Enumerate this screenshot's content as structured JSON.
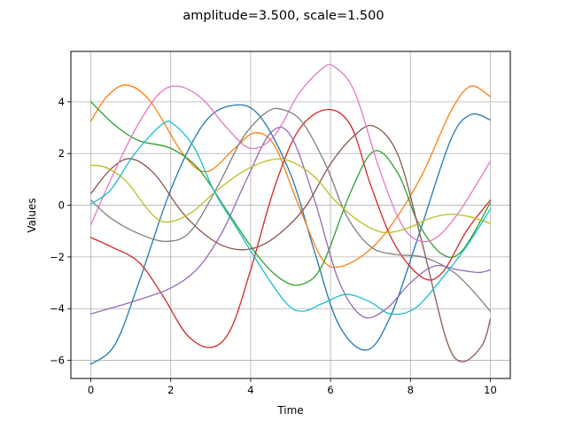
{
  "chart_data": {
    "type": "line",
    "title": "amplitude=3.500, scale=1.500",
    "xlabel": "Time",
    "ylabel": "Values",
    "xlim": [
      -0.5,
      10.5
    ],
    "ylim": [
      -6.7,
      5.95
    ],
    "xticks": [
      0,
      2,
      4,
      6,
      8,
      10
    ],
    "yticks": [
      -6,
      -4,
      -2,
      0,
      2,
      4
    ],
    "xtick_labels": [
      "0",
      "2",
      "4",
      "6",
      "8",
      "10"
    ],
    "ytick_labels": [
      "−6",
      "−4",
      "−2",
      "0",
      "2",
      "4"
    ],
    "grid": true,
    "legend": "none",
    "series": [
      {
        "color": "#1f77b4",
        "x": [
          0,
          0.6,
          1.2,
          2,
          2.8,
          3.5,
          4.2,
          5,
          5.6,
          6.2,
          6.9,
          7.5,
          8.2,
          9,
          9.5,
          10
        ],
        "y": [
          -6.15,
          -5.4,
          -3,
          0.6,
          3.1,
          3.85,
          3.5,
          1.2,
          -1.8,
          -4.6,
          -5.6,
          -4.3,
          -1.2,
          2.5,
          3.5,
          3.3
        ]
      },
      {
        "color": "#ff7f0e",
        "x": [
          0,
          0.4,
          0.9,
          1.5,
          2.3,
          2.9,
          3.6,
          4.1,
          4.6,
          5.2,
          5.8,
          6.3,
          7,
          7.6,
          8.3,
          9,
          9.5,
          10
        ],
        "y": [
          3.25,
          4.2,
          4.65,
          4,
          2,
          1.3,
          2.2,
          2.8,
          2.3,
          0,
          -2.1,
          -2.35,
          -1.7,
          -0.6,
          1.2,
          3.6,
          4.6,
          4.2
        ]
      },
      {
        "color": "#2ca02c",
        "x": [
          0,
          0.6,
          1.2,
          2,
          2.7,
          3.4,
          4.2,
          4.8,
          5.3,
          5.8,
          6.5,
          7.1,
          7.7,
          8.2,
          8.8,
          9.3,
          10
        ],
        "y": [
          4,
          3.1,
          2.5,
          2.2,
          1.4,
          -0.2,
          -2,
          -2.9,
          -3.05,
          -2.3,
          0.5,
          2.1,
          1.2,
          -0.7,
          -1.9,
          -1.75,
          0.1
        ]
      },
      {
        "color": "#d62728",
        "x": [
          0,
          0.5,
          1.2,
          1.8,
          2.4,
          3,
          3.5,
          4,
          4.6,
          5.2,
          5.9,
          6.5,
          7,
          7.6,
          8.3,
          8.8,
          9.4,
          10
        ],
        "y": [
          -1.25,
          -1.6,
          -2.2,
          -3.5,
          -5,
          -5.5,
          -4.8,
          -2.5,
          0.7,
          2.9,
          3.7,
          3.1,
          0.8,
          -1.5,
          -2.8,
          -2.6,
          -1,
          0.2
        ]
      },
      {
        "color": "#9467bd",
        "x": [
          0,
          1,
          2,
          2.7,
          3.3,
          3.9,
          4.5,
          5,
          5.6,
          6.2,
          6.8,
          7.4,
          8,
          8.6,
          9.2,
          9.7,
          10
        ],
        "y": [
          -4.2,
          -3.75,
          -3.2,
          -2.4,
          -1,
          1,
          2.8,
          2.7,
          0.2,
          -2.9,
          -4.3,
          -4,
          -3,
          -2.35,
          -2.5,
          -2.6,
          -2.5
        ]
      },
      {
        "color": "#8c564b",
        "x": [
          0,
          0.5,
          1,
          1.6,
          2.3,
          3,
          3.6,
          4.2,
          4.8,
          5.4,
          6,
          6.6,
          7.1,
          7.7,
          8.3,
          8.9,
          9.3,
          9.8,
          10
        ],
        "y": [
          0.45,
          1.4,
          1.8,
          1.2,
          -0.3,
          -1.3,
          -1.7,
          -1.6,
          -1,
          0,
          1.6,
          2.7,
          3.05,
          1.9,
          -1.5,
          -5.2,
          -6.05,
          -5.4,
          -4.4
        ]
      },
      {
        "color": "#e377c2",
        "x": [
          0,
          0.5,
          1.1,
          1.7,
          2.2,
          2.8,
          3.4,
          4,
          4.6,
          5.2,
          5.8,
          6.1,
          6.6,
          7.2,
          7.7,
          8.1,
          8.6,
          9.2,
          10
        ],
        "y": [
          -0.75,
          1,
          2.9,
          4.3,
          4.6,
          4.1,
          3,
          2.2,
          2.7,
          4.3,
          5.3,
          5.35,
          4.4,
          1.5,
          -0.5,
          -1.3,
          -1.3,
          -0.3,
          1.7
        ]
      },
      {
        "color": "#7f7f7f",
        "x": [
          0,
          0.5,
          1.2,
          1.9,
          2.5,
          3.2,
          3.8,
          4.4,
          4.8,
          5.3,
          5.9,
          6.4,
          7,
          7.6,
          8.3,
          9,
          9.5,
          10
        ],
        "y": [
          0.2,
          -0.5,
          -1.1,
          -1.4,
          -1,
          0.8,
          2.6,
          3.6,
          3.7,
          3.2,
          1.5,
          -0.4,
          -1.6,
          -1.9,
          -2,
          -2.5,
          -3.2,
          -4.1
        ]
      },
      {
        "color": "#bcbd22",
        "x": [
          0,
          0.4,
          0.9,
          1.5,
          1.9,
          2.5,
          3.1,
          3.8,
          4.5,
          5,
          5.6,
          6.1,
          6.7,
          7.3,
          7.9,
          8.5,
          9,
          9.5,
          10
        ],
        "y": [
          1.55,
          1.45,
          0.9,
          -0.3,
          -0.65,
          -0.3,
          0.5,
          1.3,
          1.75,
          1.7,
          1.1,
          0.2,
          -0.6,
          -1.05,
          -0.9,
          -0.5,
          -0.35,
          -0.45,
          -0.7
        ]
      },
      {
        "color": "#17becf",
        "x": [
          0,
          0.5,
          1.1,
          1.8,
          2.1,
          2.6,
          3.1,
          3.7,
          4.3,
          4.9,
          5.3,
          5.8,
          6.4,
          7,
          7.5,
          8.1,
          8.7,
          9.4,
          10
        ],
        "y": [
          0.05,
          0.6,
          2,
          3.15,
          3.1,
          2.2,
          0.5,
          -1,
          -2.5,
          -3.8,
          -4.1,
          -3.8,
          -3.45,
          -3.75,
          -4.2,
          -4,
          -3,
          -1.6,
          -0.15
        ]
      }
    ]
  }
}
